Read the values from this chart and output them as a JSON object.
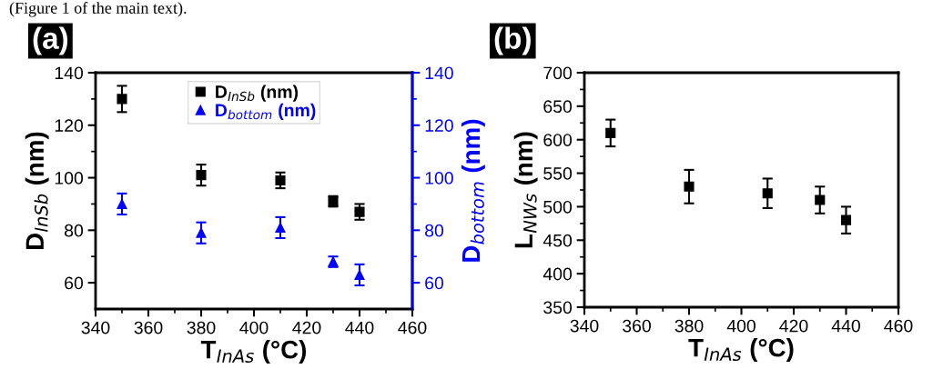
{
  "chart_data": [
    {
      "type": "scatter",
      "xlabel": "T$_{InAs}$ (°C)",
      "ylabel": "D$_{InSb}$ (nm)",
      "y2label": "D$_{bottom}$ (nm)",
      "annotations": [
        "(a)",
        "(Figure 1 of the main text)."
      ],
      "x": [
        350,
        380,
        410,
        430,
        440
      ],
      "series": [
        {
          "name": "D$_{InSb}$ (nm)",
          "color": "#000000",
          "marker": "square",
          "values": [
            130,
            101,
            99,
            91,
            87
          ],
          "errors": [
            5,
            4,
            3,
            2,
            3
          ]
        },
        {
          "name": "D$_{bottom}$ (nm)",
          "color": "#0000ff",
          "marker": "triangle",
          "axis": "y2",
          "values": [
            90,
            79,
            81,
            68,
            63
          ],
          "errors": [
            4,
            4,
            4,
            2,
            4
          ]
        }
      ],
      "xlim": [
        340,
        460
      ],
      "xticks": [
        340,
        360,
        380,
        400,
        420,
        440,
        460
      ],
      "ylim": [
        50,
        140
      ],
      "yticks": [
        60,
        80,
        100,
        120,
        140
      ],
      "y2lim": [
        50,
        140
      ],
      "y2ticks": [
        60,
        80,
        100,
        120,
        140
      ],
      "legend": "top",
      "grid": false
    },
    {
      "type": "scatter",
      "xlabel": "T$_{InAs}$ (°C)",
      "ylabel": "L$_{NWs}$ (nm)",
      "annotations": [
        "(b)"
      ],
      "x": [
        350,
        380,
        410,
        430,
        440
      ],
      "series": [
        {
          "color": "#000000",
          "marker": "square",
          "values": [
            610,
            530,
            520,
            510,
            480
          ],
          "errors": [
            20,
            25,
            22,
            20,
            20
          ]
        }
      ],
      "xlim": [
        340,
        460
      ],
      "xticks": [
        340,
        360,
        380,
        400,
        420,
        440,
        460
      ],
      "ylim": [
        350,
        700
      ],
      "yticks": [
        350,
        400,
        450,
        500,
        550,
        600,
        650,
        700
      ],
      "grid": false
    }
  ]
}
